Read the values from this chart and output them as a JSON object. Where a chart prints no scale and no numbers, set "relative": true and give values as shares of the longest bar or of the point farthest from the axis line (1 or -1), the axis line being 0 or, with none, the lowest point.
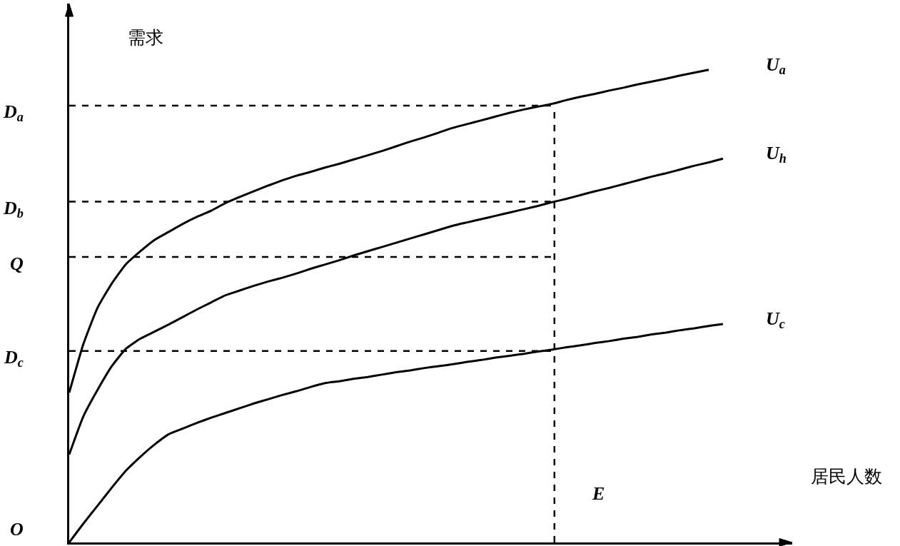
{
  "chart_data": {
    "type": "line",
    "xlabel": "居民人数",
    "ylabel": "需求",
    "relative": true,
    "legend": false,
    "categories": [
      null,
      null,
      null,
      null,
      null,
      null,
      null,
      null,
      null,
      null,
      null,
      null,
      null,
      null,
      null,
      null,
      null,
      null,
      null,
      null,
      null,
      null,
      null,
      null,
      null,
      null,
      null,
      null,
      null,
      null,
      null,
      null,
      null,
      null,
      null,
      null,
      null,
      null,
      null,
      null,
      null,
      null,
      null,
      null,
      null,
      null,
      null
    ],
    "series": [
      {
        "name": "U$_{a}$",
        "color": "#000000",
        "values": [
          0.317,
          0.42,
          0.497,
          0.548,
          0.589,
          0.616,
          0.64,
          0.657,
          0.674,
          0.689,
          0.702,
          0.718,
          0.731,
          0.743,
          0.755,
          0.766,
          0.776,
          0.784,
          0.793,
          0.801,
          0.81,
          0.819,
          0.828,
          0.838,
          0.848,
          0.857,
          0.867,
          0.877,
          0.885,
          0.893,
          0.901,
          0.909,
          0.916,
          0.922,
          0.928,
          0.936,
          0.943,
          0.949,
          0.956,
          0.962,
          0.969,
          0.975,
          0.981,
          0.988,
          0.994,
          1.0,
          null
        ]
      },
      {
        "name": "U$_{h}$",
        "color": "#000000",
        "values": [
          0.186,
          0.267,
          0.323,
          0.373,
          0.41,
          0.431,
          0.446,
          0.461,
          0.477,
          0.493,
          0.508,
          0.523,
          0.533,
          0.543,
          0.552,
          0.56,
          0.569,
          0.579,
          0.588,
          0.597,
          0.607,
          0.616,
          0.625,
          0.634,
          0.643,
          0.652,
          0.661,
          0.67,
          0.677,
          0.684,
          0.691,
          0.698,
          0.705,
          0.712,
          0.72,
          0.727,
          0.735,
          0.743,
          0.75,
          0.758,
          0.766,
          0.774,
          0.781,
          0.789,
          0.797,
          0.804,
          0.812
        ]
      },
      {
        "name": "U$_{c}$",
        "color": "#000000",
        "values": [
          0,
          0.04,
          0.078,
          0.116,
          0.152,
          0.181,
          0.207,
          0.229,
          0.241,
          0.253,
          0.264,
          0.274,
          0.284,
          0.294,
          0.303,
          0.312,
          0.32,
          0.329,
          0.337,
          0.341,
          0.346,
          0.35,
          0.355,
          0.36,
          0.364,
          0.369,
          0.373,
          0.377,
          0.382,
          0.386,
          0.391,
          0.395,
          0.399,
          0.404,
          0.408,
          0.413,
          0.417,
          0.422,
          0.426,
          0.431,
          0.435,
          0.44,
          0.444,
          0.449,
          0.453,
          0.458,
          0.462
        ]
      }
    ],
    "ref_lines": [
      {
        "axis": "y",
        "value": 0.924,
        "label": "D$_{a}$",
        "line_style": "dashed"
      },
      {
        "axis": "y",
        "value": 0.721,
        "label": "D$_{b}$",
        "line_style": "dashed"
      },
      {
        "axis": "y",
        "value": 0.604,
        "label": "Q",
        "line_style": "dashed"
      },
      {
        "axis": "y",
        "value": 0.405,
        "label": "D$_{c}$",
        "line_style": "dashed"
      }
    ],
    "annotations": [
      "O",
      "E"
    ]
  }
}
